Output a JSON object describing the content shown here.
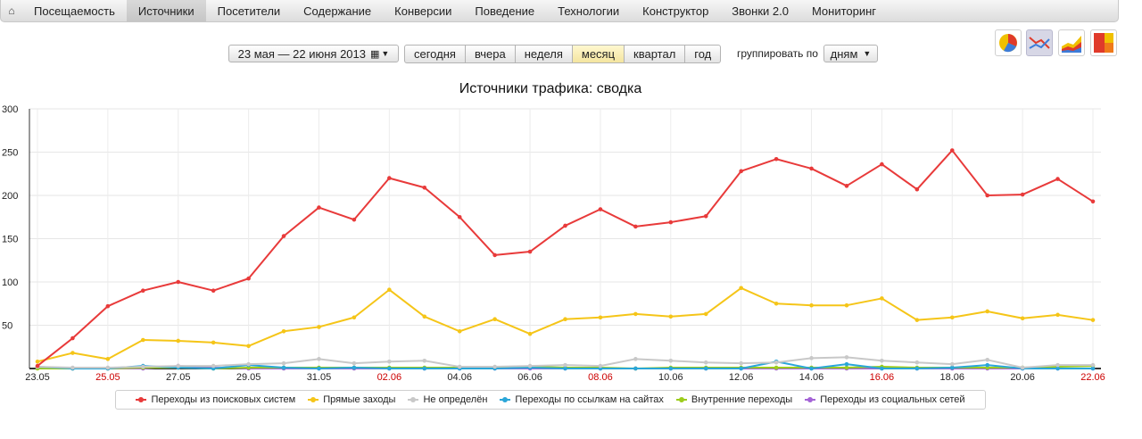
{
  "nav": {
    "home_icon": "home-icon",
    "items": [
      {
        "label": "Посещаемость",
        "active": false
      },
      {
        "label": "Источники",
        "active": true
      },
      {
        "label": "Посетители",
        "active": false
      },
      {
        "label": "Содержание",
        "active": false
      },
      {
        "label": "Конверсии",
        "active": false
      },
      {
        "label": "Поведение",
        "active": false
      },
      {
        "label": "Технологии",
        "active": false
      },
      {
        "label": "Конструктор",
        "active": false
      },
      {
        "label": "Звонки 2.0",
        "active": false
      },
      {
        "label": "Мониторинг",
        "active": false
      }
    ]
  },
  "toolbar": {
    "date_range": "23 мая — 22 июня 2013",
    "periods": [
      {
        "label": "сегодня",
        "selected": false
      },
      {
        "label": "вчера",
        "selected": false
      },
      {
        "label": "неделя",
        "selected": false
      },
      {
        "label": "месяц",
        "selected": true
      },
      {
        "label": "квартал",
        "selected": false
      },
      {
        "label": "год",
        "selected": false
      }
    ],
    "group_label": "группировать по",
    "group_value": "дням",
    "view_icons": [
      "pie-chart-icon",
      "line-chart-icon",
      "area-chart-icon",
      "treemap-icon"
    ],
    "selected_view": "line-chart-icon"
  },
  "chart_data": {
    "type": "line",
    "title": "Источники трафика: сводка",
    "ylim": [
      0,
      300
    ],
    "yticks": [
      50,
      100,
      150,
      200,
      250,
      300
    ],
    "grid": true,
    "legend_position": "bottom",
    "x": [
      "23.05",
      "24.05",
      "25.05",
      "26.05",
      "27.05",
      "28.05",
      "29.05",
      "30.05",
      "31.05",
      "01.06",
      "02.06",
      "03.06",
      "04.06",
      "05.06",
      "06.06",
      "07.06",
      "08.06",
      "09.06",
      "10.06",
      "11.06",
      "12.06",
      "13.06",
      "14.06",
      "15.06",
      "16.06",
      "17.06",
      "18.06",
      "19.06",
      "20.06",
      "21.06",
      "22.06"
    ],
    "xtick_labels": [
      "23.05",
      "25.05",
      "27.05",
      "29.05",
      "31.05",
      "02.06",
      "04.06",
      "06.06",
      "08.06",
      "10.06",
      "12.06",
      "14.06",
      "16.06",
      "18.06",
      "20.06",
      "22.06"
    ],
    "weekend_ticks": [
      "25.05",
      "02.06",
      "08.06",
      "16.06",
      "22.06"
    ],
    "weekend_color": "#cc0000",
    "series": [
      {
        "name": "Переходы из поисковых систем",
        "color": "#e83a3a",
        "values": [
          3,
          35,
          72,
          90,
          100,
          90,
          104,
          153,
          186,
          172,
          220,
          209,
          175,
          131,
          135,
          165,
          184,
          164,
          169,
          176,
          228,
          242,
          231,
          211,
          236,
          207,
          252,
          200,
          201,
          219,
          193
        ]
      },
      {
        "name": "Прямые заходы",
        "color": "#f5c518",
        "values": [
          8,
          18,
          11,
          33,
          32,
          30,
          26,
          43,
          48,
          59,
          91,
          60,
          43,
          57,
          40,
          57,
          59,
          63,
          60,
          63,
          93,
          75,
          73,
          73,
          81,
          56,
          59,
          66,
          58,
          62,
          56
        ]
      },
      {
        "name": "Не определён",
        "color": "#c8c8c8",
        "values": [
          2,
          1,
          1,
          2,
          3,
          3,
          5,
          6,
          11,
          6,
          8,
          9,
          2,
          2,
          3,
          4,
          3,
          11,
          9,
          7,
          6,
          7,
          12,
          13,
          9,
          7,
          5,
          10,
          1,
          4,
          4
        ]
      },
      {
        "name": "Переходы по ссылкам на сайтах",
        "color": "#2aa6d8",
        "values": [
          2,
          0,
          0,
          3,
          1,
          0,
          4,
          1,
          0,
          1,
          0,
          0,
          0,
          0,
          1,
          0,
          0,
          0,
          0,
          0,
          0,
          8,
          0,
          5,
          0,
          0,
          1,
          4,
          0,
          0,
          0
        ]
      },
      {
        "name": "Внутренние переходы",
        "color": "#9ccc1c",
        "values": [
          0,
          0,
          0,
          1,
          1,
          0,
          1,
          1,
          1,
          1,
          1,
          1,
          1,
          1,
          2,
          1,
          1,
          0,
          1,
          1,
          1,
          1,
          1,
          1,
          2,
          1,
          1,
          1,
          1,
          2,
          3
        ]
      },
      {
        "name": "Переходы из социальных сетей",
        "color": "#a463d6",
        "values": [
          1,
          0,
          0,
          0,
          3,
          1,
          0,
          0,
          0,
          0,
          0,
          0,
          0,
          0,
          0,
          0,
          0,
          0,
          0,
          0,
          0,
          0,
          0,
          0,
          0,
          0,
          0,
          0,
          0,
          0,
          0
        ]
      }
    ]
  }
}
